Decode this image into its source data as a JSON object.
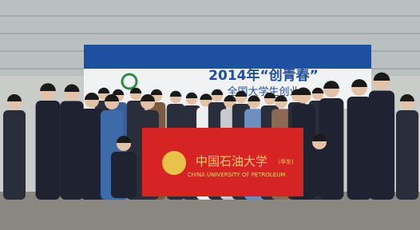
{
  "backdrop": {
    "title": "2014年“创青春”",
    "subtitle": "全国大学生创业"
  },
  "banner": {
    "name": "中国石油大学",
    "note": "(华东)",
    "english": "CHINA UNIVERSITY OF PETROLEUM"
  }
}
